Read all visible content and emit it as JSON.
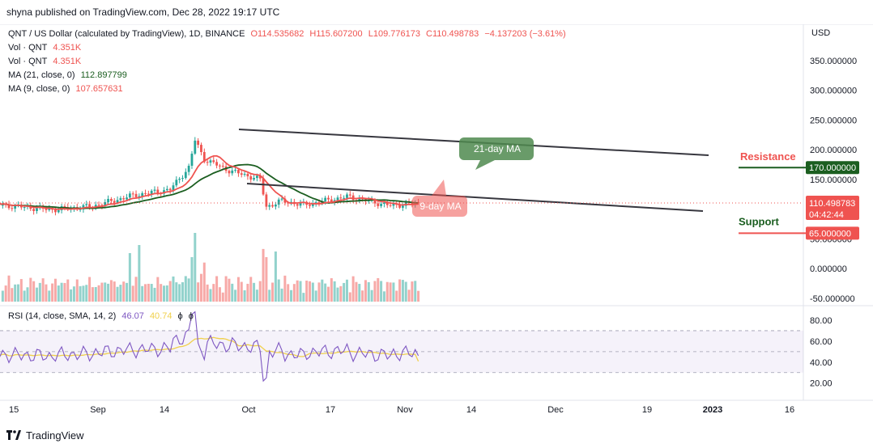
{
  "header": {
    "published": "shyna published on TradingView.com, Dec 28, 2022 19:17 UTC"
  },
  "legend": {
    "title": "QNT / US Dollar (calculated by TradingView), 1D, BINANCE",
    "open": "O114.535682",
    "high": "H115.607200",
    "low": "L109.776173",
    "close": "C110.498783",
    "change": "−4.137203 (−3.61%)",
    "vol1_label": "Vol · QNT",
    "vol1_value": "4.351K",
    "vol2_label": "Vol · QNT",
    "vol2_value": "4.351K",
    "ma21_label": "MA (21, close, 0)",
    "ma21_value": "112.897799",
    "ma9_label": "MA (9, close, 0)",
    "ma9_value": "107.657631",
    "rsi_label": "RSI (14, close, SMA, 14, 2)",
    "rsi_value": "46.07",
    "rsi_sma_value": "40.74",
    "rsi_extra1": "ϕ",
    "rsi_extra2": "ϕ"
  },
  "price_axis": {
    "currency": "USD",
    "ticks": [
      "350.000000",
      "300.000000",
      "250.000000",
      "200.000000",
      "150.000000",
      "50.000000",
      "0.000000",
      "-50.000000"
    ],
    "last_price": "110.498783",
    "countdown": "04:42:44",
    "resistance_value": "170.000000",
    "support_value": "65.000000"
  },
  "rsi_axis": {
    "ticks": [
      "80.00",
      "60.00",
      "40.00",
      "20.00"
    ]
  },
  "time_axis": {
    "ticks": [
      "15",
      "Sep",
      "14",
      "Oct",
      "17",
      "Nov",
      "14",
      "Dec",
      "19",
      "2023",
      "16"
    ]
  },
  "annotations": {
    "resistance": "Resistance",
    "support": "Support",
    "ma21": "21-day MA",
    "ma9": "9-day MA"
  },
  "footer": {
    "brand": "TradingView"
  },
  "colors": {
    "up": "#26a69a",
    "down": "#ef5350",
    "ma21": "#1b5e20",
    "ma9": "#ef5350",
    "rsi": "#7e57c2",
    "rsi_sma": "#f0d04c",
    "channel": "#37373f",
    "resistance": "#1b5e20",
    "support": "#ef5350"
  },
  "chart_data": {
    "type": "candlestick",
    "title": "QNT / US Dollar (calculated by TradingView), 1D, BINANCE",
    "ylabel": "USD",
    "ylim": [
      65,
      235
    ],
    "ohlc_keypoints": [
      {
        "date": "2022-08-13",
        "close": 108
      },
      {
        "date": "2022-09-01",
        "close": 99
      },
      {
        "date": "2022-09-14",
        "close": 105
      },
      {
        "date": "2022-09-27",
        "close": 123
      },
      {
        "date": "2022-10-09",
        "close": 133
      },
      {
        "date": "2022-10-15",
        "close": 170
      },
      {
        "date": "2022-10-17",
        "close": 216
      },
      {
        "date": "2022-10-20",
        "close": 184
      },
      {
        "date": "2022-10-28",
        "close": 165
      },
      {
        "date": "2022-11-07",
        "close": 150
      },
      {
        "date": "2022-11-09",
        "close": 104
      },
      {
        "date": "2022-11-14",
        "close": 114
      },
      {
        "date": "2022-11-21",
        "close": 107
      },
      {
        "date": "2022-12-05",
        "close": 121
      },
      {
        "date": "2022-12-19",
        "close": 106
      },
      {
        "date": "2022-12-28",
        "close": 110.498783
      }
    ],
    "last": {
      "open": 114.535682,
      "high": 115.6072,
      "low": 109.776173,
      "close": 110.498783,
      "change": -4.137203,
      "change_pct": -3.61
    },
    "ma21_last": 112.897799,
    "ma9_last": 107.657631,
    "resistance": 170,
    "support": 65,
    "rsi": {
      "ylim": [
        20,
        80
      ],
      "last": 46.07,
      "sma_last": 40.74,
      "bands": [
        30,
        50,
        70
      ]
    }
  }
}
